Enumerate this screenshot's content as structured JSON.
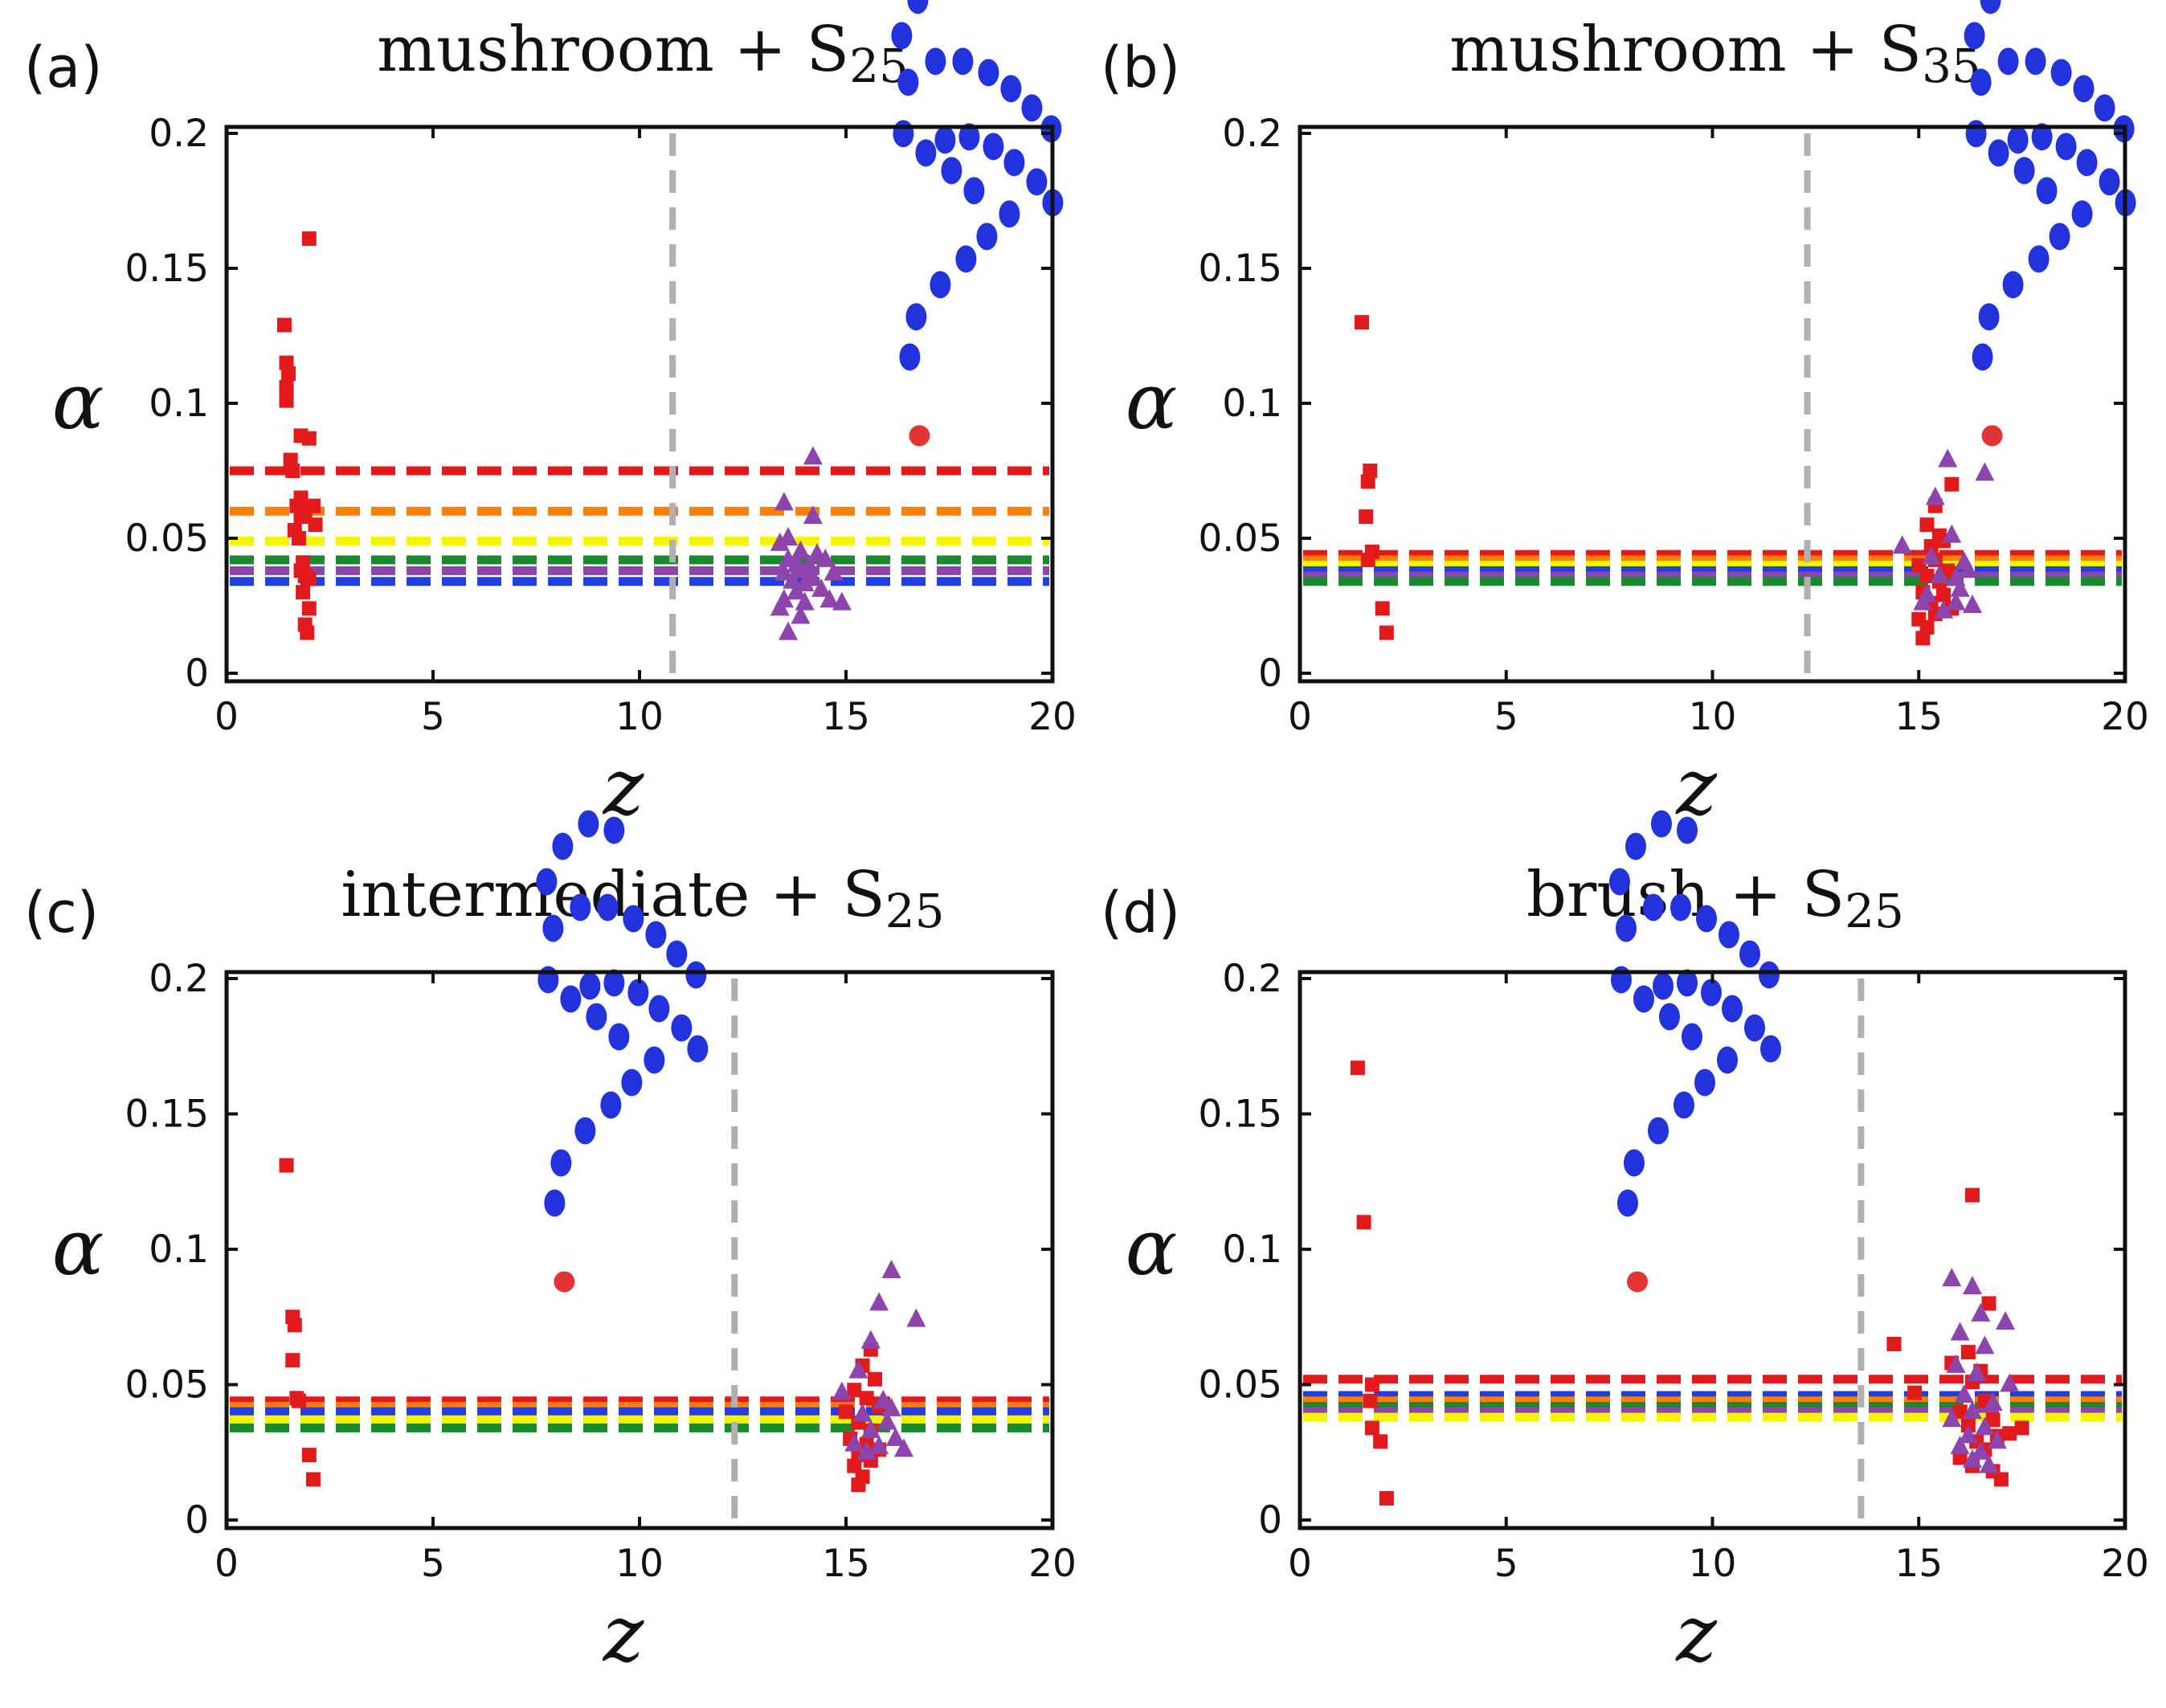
{
  "figure": {
    "legend_colors": {
      "red": "#e31a1c",
      "orange": "#ff7f00",
      "yellow": "#f5f500",
      "green": "#1a8a2e",
      "purple": "#8e44ad",
      "blue": "#1f3fe0",
      "vline": "#b0b0b0",
      "bead": "#2233dd",
      "tip": "#e33333"
    },
    "marker_icons": {
      "square": "red-square-marker",
      "triangle": "purple-triangle-marker",
      "polymer": "polymer-chain-icon"
    }
  },
  "chart_data": [
    {
      "panel": "(a)",
      "title_main": "mushroom + S",
      "title_sub": "25",
      "type": "scatter",
      "xlabel": "z",
      "ylabel": "α",
      "xlim": [
        0,
        20
      ],
      "ylim": [
        0,
        0.2
      ],
      "xticks": [
        "0",
        "5",
        "10",
        "15",
        "20"
      ],
      "yticks": [
        "0",
        "0.05",
        "0.1",
        "0.15",
        "0.2"
      ],
      "vline": 10.8,
      "hlines": [
        {
          "color": "red",
          "y": 0.075
        },
        {
          "color": "orange",
          "y": 0.06
        },
        {
          "color": "yellow",
          "y": 0.049
        },
        {
          "color": "green",
          "y": 0.042
        },
        {
          "color": "purple",
          "y": 0.038
        },
        {
          "color": "blue",
          "y": 0.034
        }
      ],
      "squares": [
        [
          2.0,
          0.161
        ],
        [
          1.4,
          0.129
        ],
        [
          1.45,
          0.115
        ],
        [
          1.5,
          0.111
        ],
        [
          1.45,
          0.106
        ],
        [
          1.45,
          0.101
        ],
        [
          1.8,
          0.088
        ],
        [
          2.0,
          0.087
        ],
        [
          1.55,
          0.079
        ],
        [
          1.6,
          0.075
        ],
        [
          1.8,
          0.065
        ],
        [
          1.7,
          0.062
        ],
        [
          2.1,
          0.062
        ],
        [
          1.9,
          0.06
        ],
        [
          1.8,
          0.058
        ],
        [
          2.15,
          0.055
        ],
        [
          1.65,
          0.053
        ],
        [
          1.75,
          0.05
        ],
        [
          1.85,
          0.041
        ],
        [
          1.8,
          0.038
        ],
        [
          1.9,
          0.036
        ],
        [
          2.0,
          0.035
        ],
        [
          1.85,
          0.03
        ],
        [
          2.0,
          0.024
        ],
        [
          1.9,
          0.018
        ],
        [
          1.95,
          0.015
        ]
      ],
      "triangles": [
        [
          14.2,
          0.08
        ],
        [
          13.5,
          0.063
        ],
        [
          14.2,
          0.058
        ],
        [
          13.6,
          0.05
        ],
        [
          13.4,
          0.048
        ],
        [
          13.9,
          0.045
        ],
        [
          14.3,
          0.044
        ],
        [
          13.6,
          0.042
        ],
        [
          13.8,
          0.04
        ],
        [
          14.1,
          0.04
        ],
        [
          14.5,
          0.042
        ],
        [
          13.9,
          0.038
        ],
        [
          13.5,
          0.037
        ],
        [
          14.2,
          0.035
        ],
        [
          14.7,
          0.037
        ],
        [
          13.7,
          0.034
        ],
        [
          14.0,
          0.033
        ],
        [
          13.8,
          0.03
        ],
        [
          14.4,
          0.031
        ],
        [
          13.5,
          0.027
        ],
        [
          14.0,
          0.026
        ],
        [
          14.6,
          0.027
        ],
        [
          13.4,
          0.024
        ],
        [
          14.9,
          0.026
        ],
        [
          13.9,
          0.021
        ],
        [
          13.6,
          0.015
        ]
      ],
      "polymer": {
        "x": 16.0,
        "y": 0.088
      }
    },
    {
      "panel": "(b)",
      "title_main": "mushroom + S",
      "title_sub": "35",
      "type": "scatter",
      "xlabel": "z",
      "ylabel": "α",
      "xlim": [
        0,
        20
      ],
      "ylim": [
        0,
        0.2
      ],
      "xticks": [
        "0",
        "5",
        "10",
        "15",
        "20"
      ],
      "yticks": [
        "0",
        "0.05",
        "0.1",
        "0.15",
        "0.2"
      ],
      "vline": 12.3,
      "hlines": [
        {
          "color": "red",
          "y": 0.044
        },
        {
          "color": "orange",
          "y": 0.042
        },
        {
          "color": "yellow",
          "y": 0.04
        },
        {
          "color": "blue",
          "y": 0.038
        },
        {
          "color": "purple",
          "y": 0.036
        },
        {
          "color": "green",
          "y": 0.034
        }
      ],
      "squares": [
        [
          1.5,
          0.13
        ],
        [
          1.7,
          0.075
        ],
        [
          1.65,
          0.071
        ],
        [
          1.6,
          0.058
        ],
        [
          1.75,
          0.045
        ],
        [
          1.65,
          0.042
        ],
        [
          2.0,
          0.024
        ],
        [
          2.1,
          0.015
        ],
        [
          15.8,
          0.07
        ],
        [
          15.4,
          0.062
        ],
        [
          15.2,
          0.055
        ],
        [
          15.5,
          0.051
        ],
        [
          15.3,
          0.047
        ],
        [
          15.6,
          0.049
        ],
        [
          15.0,
          0.04
        ],
        [
          15.4,
          0.042
        ],
        [
          15.7,
          0.038
        ],
        [
          15.2,
          0.036
        ],
        [
          15.5,
          0.034
        ],
        [
          15.1,
          0.03
        ],
        [
          15.6,
          0.029
        ],
        [
          15.3,
          0.026
        ],
        [
          15.8,
          0.024
        ],
        [
          15.4,
          0.022
        ],
        [
          15.0,
          0.02
        ],
        [
          15.2,
          0.017
        ],
        [
          15.1,
          0.013
        ]
      ],
      "triangles": [
        [
          15.7,
          0.079
        ],
        [
          16.6,
          0.074
        ],
        [
          15.4,
          0.065
        ],
        [
          15.8,
          0.051
        ],
        [
          14.6,
          0.047
        ],
        [
          15.3,
          0.043
        ],
        [
          16.2,
          0.038
        ],
        [
          15.9,
          0.035
        ],
        [
          15.5,
          0.036
        ],
        [
          16.0,
          0.031
        ],
        [
          15.2,
          0.029
        ],
        [
          15.9,
          0.026
        ],
        [
          16.3,
          0.025
        ],
        [
          15.6,
          0.023
        ],
        [
          15.1,
          0.026
        ],
        [
          16.1,
          0.041
        ]
      ],
      "polymer": {
        "x": 16.0,
        "y": 0.088
      }
    },
    {
      "panel": "(c)",
      "title_main": "intermediate + S",
      "title_sub": "25",
      "type": "scatter",
      "xlabel": "z",
      "ylabel": "α",
      "xlim": [
        0,
        20
      ],
      "ylim": [
        0,
        0.2
      ],
      "xticks": [
        "0",
        "5",
        "10",
        "15",
        "20"
      ],
      "yticks": [
        "0",
        "0.05",
        "0.1",
        "0.15",
        "0.2"
      ],
      "vline": 12.3,
      "hlines": [
        {
          "color": "red",
          "y": 0.044
        },
        {
          "color": "orange",
          "y": 0.042
        },
        {
          "color": "blue",
          "y": 0.04
        },
        {
          "color": "yellow",
          "y": 0.037
        },
        {
          "color": "green",
          "y": 0.034
        }
      ],
      "squares": [
        [
          1.45,
          0.131
        ],
        [
          1.6,
          0.075
        ],
        [
          1.65,
          0.072
        ],
        [
          1.6,
          0.059
        ],
        [
          1.7,
          0.045
        ],
        [
          1.75,
          0.044
        ],
        [
          2.0,
          0.024
        ],
        [
          2.1,
          0.015
        ],
        [
          15.6,
          0.063
        ],
        [
          15.4,
          0.057
        ],
        [
          15.7,
          0.052
        ],
        [
          15.2,
          0.048
        ],
        [
          15.5,
          0.045
        ],
        [
          15.0,
          0.04
        ],
        [
          15.8,
          0.042
        ],
        [
          15.3,
          0.036
        ],
        [
          15.6,
          0.033
        ],
        [
          15.1,
          0.03
        ],
        [
          15.5,
          0.028
        ],
        [
          15.8,
          0.026
        ],
        [
          15.3,
          0.024
        ],
        [
          15.6,
          0.022
        ],
        [
          15.2,
          0.02
        ],
        [
          15.4,
          0.016
        ],
        [
          15.3,
          0.013
        ]
      ],
      "triangles": [
        [
          16.1,
          0.092
        ],
        [
          15.8,
          0.08
        ],
        [
          16.7,
          0.074
        ],
        [
          15.6,
          0.066
        ],
        [
          15.3,
          0.055
        ],
        [
          14.9,
          0.047
        ],
        [
          15.9,
          0.044
        ],
        [
          15.4,
          0.039
        ],
        [
          16.0,
          0.036
        ],
        [
          15.6,
          0.033
        ],
        [
          16.2,
          0.03
        ],
        [
          15.2,
          0.028
        ],
        [
          15.8,
          0.027
        ],
        [
          16.4,
          0.026
        ],
        [
          15.5,
          0.025
        ],
        [
          16.1,
          0.041
        ]
      ],
      "polymer": {
        "x": 7.4,
        "y": 0.088
      }
    },
    {
      "panel": "(d)",
      "title_main": "brush + S",
      "title_sub": "25",
      "type": "scatter",
      "xlabel": "z",
      "ylabel": "α",
      "xlim": [
        0,
        20
      ],
      "ylim": [
        0,
        0.2
      ],
      "xticks": [
        "0",
        "5",
        "10",
        "15",
        "20"
      ],
      "yticks": [
        "0",
        "0.05",
        "0.1",
        "0.15",
        "0.2"
      ],
      "vline": 13.6,
      "hlines": [
        {
          "color": "red",
          "y": 0.052
        },
        {
          "color": "blue",
          "y": 0.046
        },
        {
          "color": "orange",
          "y": 0.044
        },
        {
          "color": "green",
          "y": 0.042
        },
        {
          "color": "purple",
          "y": 0.04
        },
        {
          "color": "yellow",
          "y": 0.038
        }
      ],
      "squares": [
        [
          1.4,
          0.167
        ],
        [
          1.55,
          0.11
        ],
        [
          1.75,
          0.05
        ],
        [
          1.7,
          0.044
        ],
        [
          1.75,
          0.034
        ],
        [
          1.95,
          0.029
        ],
        [
          2.1,
          0.008
        ],
        [
          16.3,
          0.12
        ],
        [
          16.7,
          0.08
        ],
        [
          14.4,
          0.065
        ],
        [
          16.2,
          0.062
        ],
        [
          15.8,
          0.058
        ],
        [
          16.5,
          0.055
        ],
        [
          16.3,
          0.051
        ],
        [
          14.9,
          0.047
        ],
        [
          16.6,
          0.044
        ],
        [
          16.0,
          0.04
        ],
        [
          16.8,
          0.037
        ],
        [
          16.2,
          0.035
        ],
        [
          17.2,
          0.032
        ],
        [
          16.9,
          0.031
        ],
        [
          17.5,
          0.034
        ],
        [
          16.4,
          0.029
        ],
        [
          16.6,
          0.026
        ],
        [
          16.0,
          0.023
        ],
        [
          16.3,
          0.02
        ],
        [
          16.8,
          0.018
        ],
        [
          17.0,
          0.015
        ]
      ],
      "triangles": [
        [
          15.8,
          0.089
        ],
        [
          16.3,
          0.086
        ],
        [
          16.5,
          0.076
        ],
        [
          17.1,
          0.073
        ],
        [
          16.0,
          0.069
        ],
        [
          16.6,
          0.064
        ],
        [
          15.9,
          0.057
        ],
        [
          16.4,
          0.054
        ],
        [
          17.2,
          0.05
        ],
        [
          16.1,
          0.046
        ],
        [
          16.8,
          0.043
        ],
        [
          16.3,
          0.04
        ],
        [
          15.8,
          0.037
        ],
        [
          16.6,
          0.034
        ],
        [
          16.2,
          0.031
        ],
        [
          16.9,
          0.029
        ],
        [
          16.0,
          0.027
        ],
        [
          16.5,
          0.025
        ],
        [
          16.3,
          0.022
        ],
        [
          16.7,
          0.02
        ]
      ],
      "polymer": {
        "x": 7.4,
        "y": 0.088
      }
    }
  ]
}
